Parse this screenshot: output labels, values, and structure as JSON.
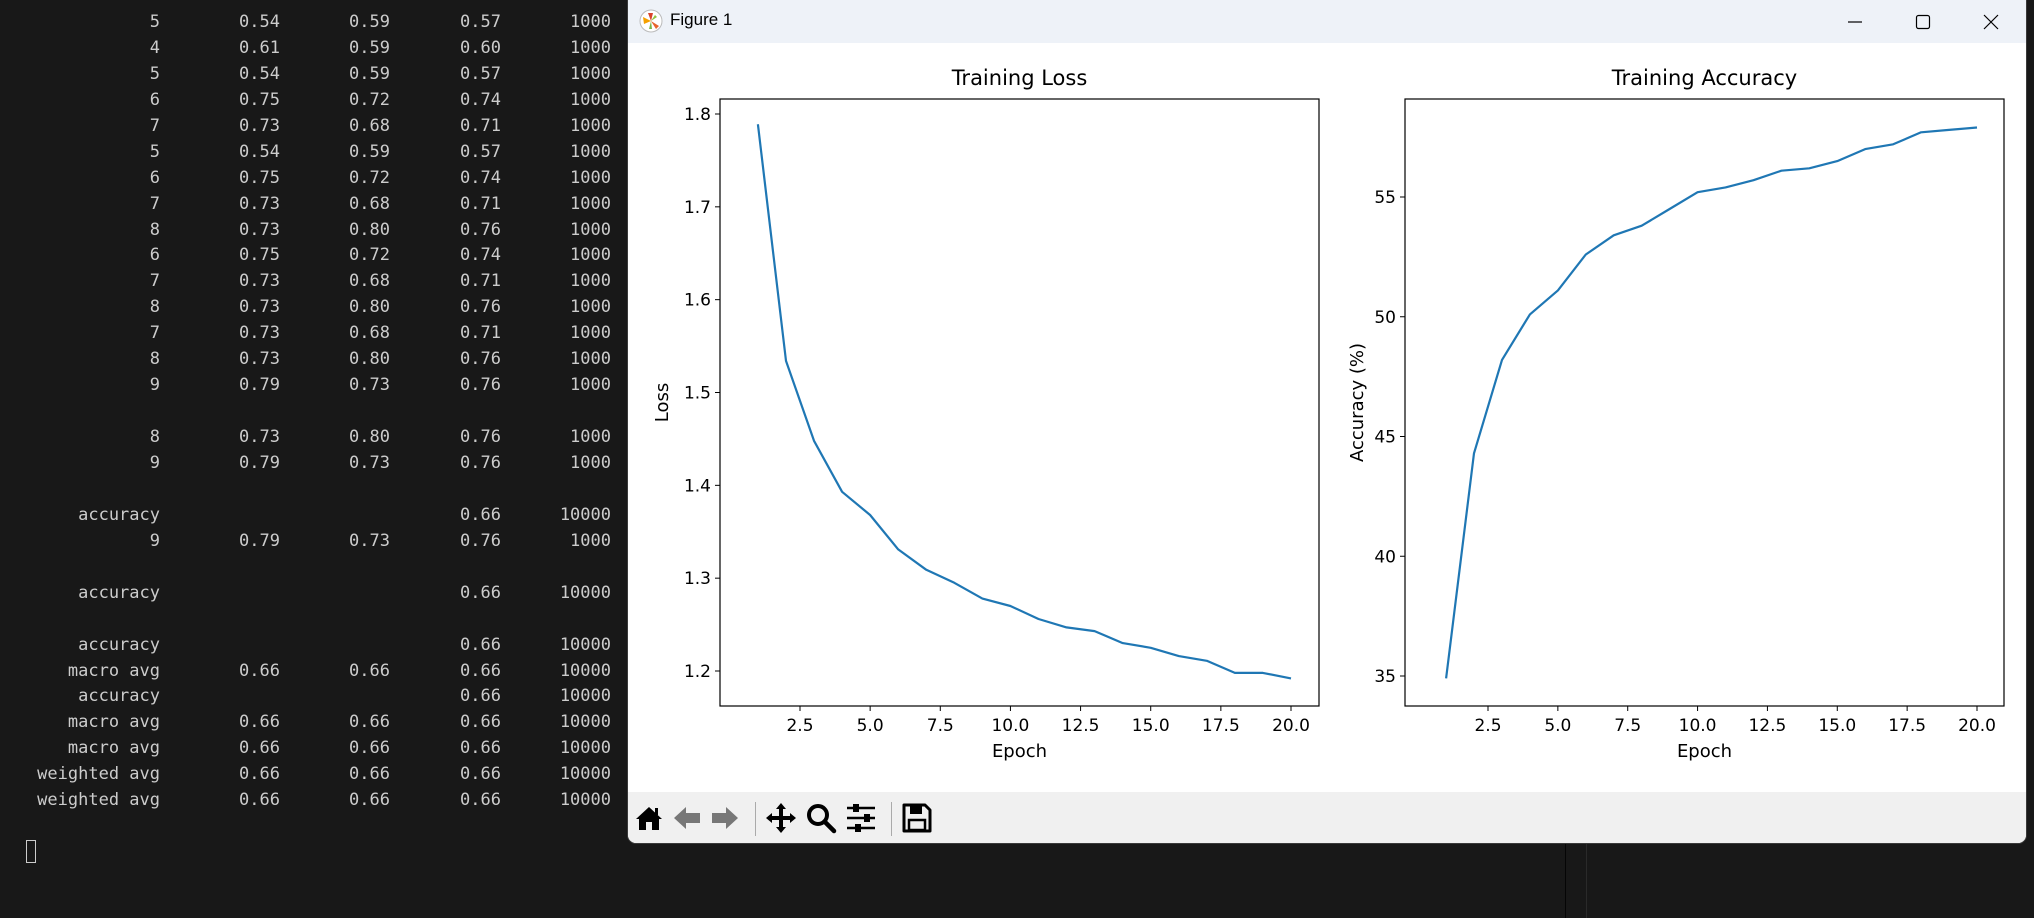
{
  "terminal": {
    "rows": [
      [
        "5",
        "0.54",
        "0.59",
        "0.57",
        "1000"
      ],
      [
        "4",
        "0.61",
        "0.59",
        "0.60",
        "1000"
      ],
      [
        "5",
        "0.54",
        "0.59",
        "0.57",
        "1000"
      ],
      [
        "6",
        "0.75",
        "0.72",
        "0.74",
        "1000"
      ],
      [
        "7",
        "0.73",
        "0.68",
        "0.71",
        "1000"
      ],
      [
        "5",
        "0.54",
        "0.59",
        "0.57",
        "1000"
      ],
      [
        "6",
        "0.75",
        "0.72",
        "0.74",
        "1000"
      ],
      [
        "7",
        "0.73",
        "0.68",
        "0.71",
        "1000"
      ],
      [
        "8",
        "0.73",
        "0.80",
        "0.76",
        "1000"
      ],
      [
        "6",
        "0.75",
        "0.72",
        "0.74",
        "1000"
      ],
      [
        "7",
        "0.73",
        "0.68",
        "0.71",
        "1000"
      ],
      [
        "8",
        "0.73",
        "0.80",
        "0.76",
        "1000"
      ],
      [
        "7",
        "0.73",
        "0.68",
        "0.71",
        "1000"
      ],
      [
        "8",
        "0.73",
        "0.80",
        "0.76",
        "1000"
      ],
      [
        "9",
        "0.79",
        "0.73",
        "0.76",
        "1000"
      ],
      [],
      [
        "8",
        "0.73",
        "0.80",
        "0.76",
        "1000"
      ],
      [
        "9",
        "0.79",
        "0.73",
        "0.76",
        "1000"
      ],
      [],
      [
        "accuracy",
        "",
        "",
        "0.66",
        "10000"
      ],
      [
        "9",
        "0.79",
        "0.73",
        "0.76",
        "1000"
      ],
      [],
      [
        "accuracy",
        "",
        "",
        "0.66",
        "10000"
      ],
      [],
      [
        "accuracy",
        "",
        "",
        "0.66",
        "10000"
      ],
      [
        "macro avg",
        "0.66",
        "0.66",
        "0.66",
        "10000"
      ],
      [
        "accuracy",
        "",
        "",
        "0.66",
        "10000"
      ],
      [
        "macro avg",
        "0.66",
        "0.66",
        "0.66",
        "10000"
      ],
      [
        "macro avg",
        "0.66",
        "0.66",
        "0.66",
        "10000"
      ],
      [
        "weighted avg",
        "0.66",
        "0.66",
        "0.66",
        "10000"
      ],
      [
        "weighted avg",
        "0.66",
        "0.66",
        "0.66",
        "10000"
      ]
    ]
  },
  "window": {
    "title": "Figure 1",
    "app_icon": "matplotlib-logo-icon",
    "controls": [
      "minimize-icon",
      "maximize-icon",
      "close-icon"
    ]
  },
  "toolbar": {
    "buttons": [
      "home-icon",
      "back-arrow-icon",
      "forward-arrow-icon",
      "pan-icon",
      "zoom-icon",
      "configure-subplots-icon",
      "save-icon"
    ]
  },
  "colors": {
    "line": "#1f77b4",
    "terminal_bg": "#181818",
    "terminal_text": "#cccccc"
  },
  "chart_data": [
    {
      "type": "line",
      "title": "Training Loss",
      "xlabel": "Epoch",
      "ylabel": "Loss",
      "x": [
        1,
        2,
        3,
        4,
        5,
        6,
        7,
        8,
        9,
        10,
        11,
        12,
        13,
        14,
        15,
        16,
        17,
        18,
        19,
        20
      ],
      "series": [
        {
          "values": [
            1.789,
            1.534,
            1.448,
            1.393,
            1.368,
            1.331,
            1.309,
            1.295,
            1.278,
            1.27,
            1.256,
            1.247,
            1.243,
            1.23,
            1.225,
            1.216,
            1.211,
            1.198,
            1.198,
            1.192
          ]
        }
      ],
      "xticks": [
        "2.5",
        "5.0",
        "7.5",
        "10.0",
        "12.5",
        "15.0",
        "17.5",
        "20.0"
      ],
      "yticks": [
        "1.2",
        "1.3",
        "1.4",
        "1.5",
        "1.6",
        "1.7",
        "1.8"
      ],
      "grid": false
    },
    {
      "type": "line",
      "title": "Training Accuracy",
      "xlabel": "Epoch",
      "ylabel": "Accuracy (%)",
      "x": [
        1,
        2,
        3,
        4,
        5,
        6,
        7,
        8,
        9,
        10,
        11,
        12,
        13,
        14,
        15,
        16,
        17,
        18,
        19,
        20
      ],
      "series": [
        {
          "values": [
            34.9,
            44.3,
            48.2,
            50.1,
            51.1,
            52.6,
            53.4,
            53.8,
            54.5,
            55.2,
            55.4,
            55.7,
            56.1,
            56.2,
            56.5,
            57.0,
            57.2,
            57.7,
            57.8,
            57.9
          ]
        }
      ],
      "xticks": [
        "2.5",
        "5.0",
        "7.5",
        "10.0",
        "12.5",
        "15.0",
        "17.5",
        "20.0"
      ],
      "yticks": [
        "35",
        "40",
        "45",
        "50",
        "55"
      ],
      "grid": false
    }
  ]
}
